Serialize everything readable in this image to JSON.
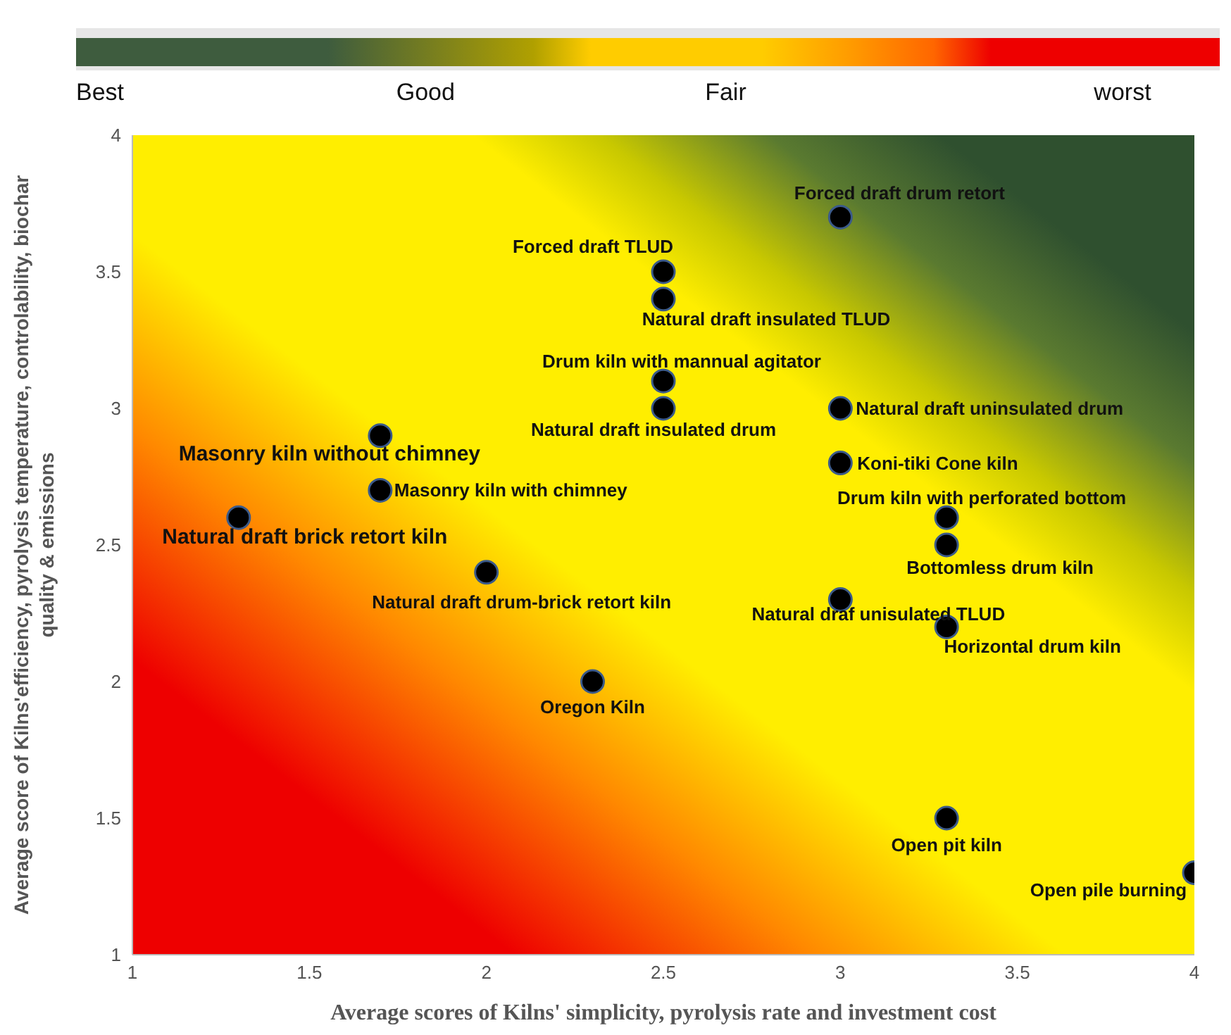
{
  "chart_data": {
    "type": "scatter",
    "xlabel": "Average scores of Kilns' simplicity, pyrolysis rate and investment cost",
    "ylabel": "Average score of Kilns'efficiency, pyrolysis temperature, controlability, biochar quality & emissions",
    "xlim": [
      1,
      4
    ],
    "ylim": [
      1,
      4
    ],
    "xticks": [
      1,
      1.5,
      2,
      2.5,
      3,
      3.5,
      4
    ],
    "yticks": [
      1,
      1.5,
      2,
      2.5,
      3,
      3.5,
      4
    ],
    "marker": "circle",
    "x": [
      3.0,
      2.5,
      2.5,
      2.5,
      2.5,
      3.0,
      3.0,
      1.7,
      1.7,
      1.3,
      3.3,
      3.3,
      2.0,
      3.0,
      3.3,
      2.3,
      3.3,
      4.0
    ],
    "series": [
      {
        "color": "#000000",
        "values": [
          3.7,
          3.5,
          3.4,
          3.1,
          3.0,
          3.0,
          2.8,
          2.9,
          2.7,
          2.6,
          2.6,
          2.5,
          2.4,
          2.3,
          2.2,
          2.0,
          1.5,
          1.3
        ]
      }
    ],
    "annotations": [
      "Best",
      "Good",
      "Fair",
      "worst",
      {
        "text": "Forced draft drum retort",
        "x": 3.0,
        "y": 3.7
      },
      {
        "text": "Forced draft TLUD",
        "x": 2.5,
        "y": 3.5
      },
      {
        "text": "Natural draft insulated TLUD",
        "x": 2.5,
        "y": 3.4
      },
      {
        "text": "Drum kiln with mannual agitator",
        "x": 2.5,
        "y": 3.1
      },
      {
        "text": "Natural draft insulated drum",
        "x": 2.5,
        "y": 3.0
      },
      {
        "text": "Natural draft uninsulated drum",
        "x": 3.0,
        "y": 3.0
      },
      {
        "text": "Koni-tiki Cone kiln",
        "x": 3.0,
        "y": 2.8
      },
      {
        "text": "Masonry kiln without chimney",
        "x": 1.7,
        "y": 2.9
      },
      {
        "text": "Masonry kiln with chimney",
        "x": 1.7,
        "y": 2.7
      },
      {
        "text": "Natural draft brick retort kiln",
        "x": 1.3,
        "y": 2.6
      },
      {
        "text": "Drum kiln with perforated bottom",
        "x": 3.3,
        "y": 2.6
      },
      {
        "text": "Bottomless drum kiln",
        "x": 3.3,
        "y": 2.5
      },
      {
        "text": "Natural draft drum-brick retort kiln",
        "x": 2.0,
        "y": 2.4
      },
      {
        "text": "Natural draf unisulated TLUD",
        "x": 3.0,
        "y": 2.3
      },
      {
        "text": "Horizontal drum kiln",
        "x": 3.3,
        "y": 2.2
      },
      {
        "text": "Oregon Kiln",
        "x": 2.3,
        "y": 2.0
      },
      {
        "text": "Open pit kiln",
        "x": 3.3,
        "y": 1.5
      },
      {
        "text": "Open pile burning",
        "x": 4.0,
        "y": 1.3
      }
    ]
  }
}
